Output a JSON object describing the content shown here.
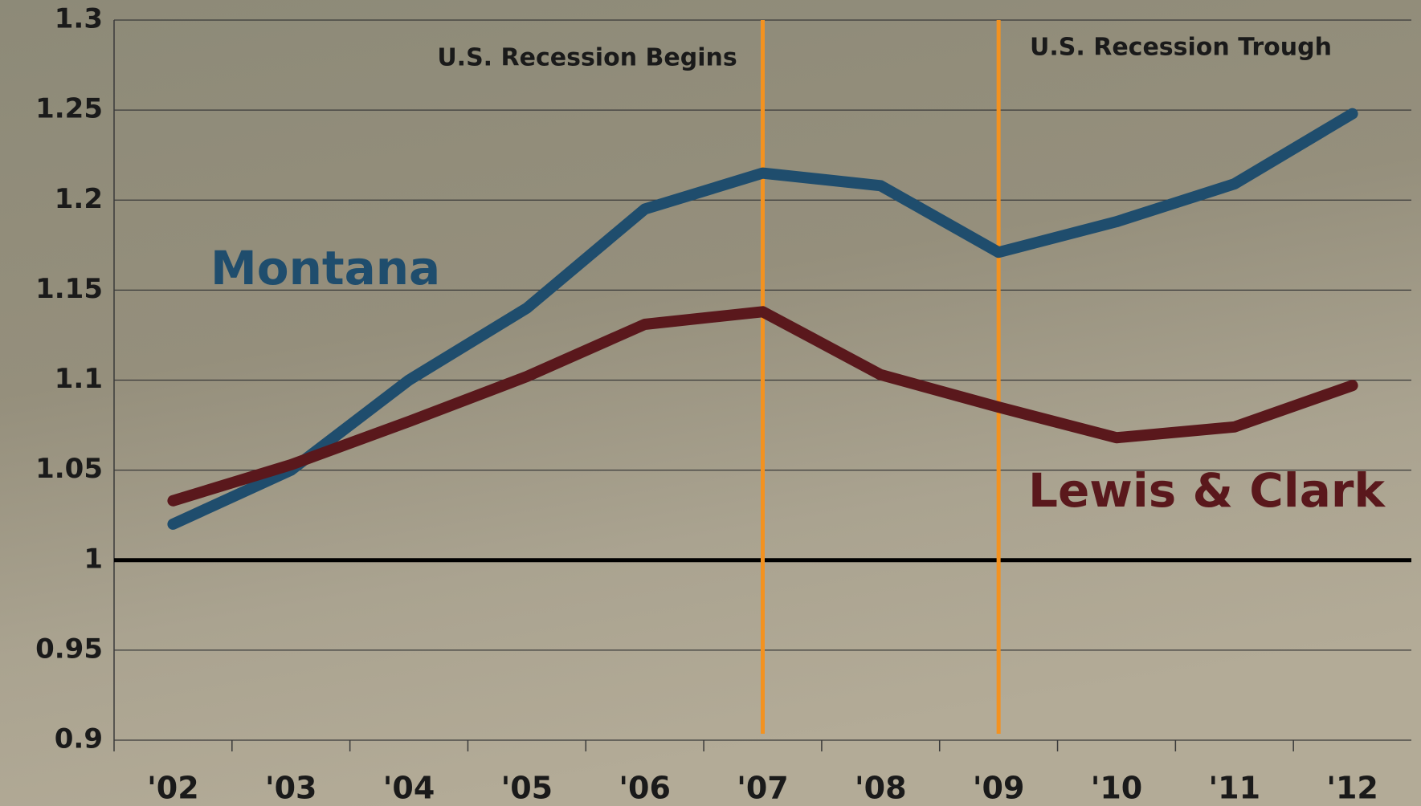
{
  "chart_data": {
    "type": "line",
    "categories": [
      "'02",
      "'03",
      "'04",
      "'05",
      "'06",
      "'07",
      "'08",
      "'09",
      "'10",
      "'11",
      "'12"
    ],
    "series": [
      {
        "name": "Montana",
        "color": "#1f4d6d",
        "values": [
          1.02,
          1.05,
          1.1,
          1.14,
          1.195,
          1.215,
          1.208,
          1.171,
          1.188,
          1.209,
          1.248
        ]
      },
      {
        "name": "Lewis & Clark",
        "color": "#5a181c",
        "values": [
          1.033,
          1.053,
          1.077,
          1.102,
          1.131,
          1.138,
          1.103,
          1.085,
          1.068,
          1.074,
          1.097
        ]
      }
    ],
    "ylim": [
      0.9,
      1.3
    ],
    "yticks": [
      0.9,
      0.95,
      1,
      1.05,
      1.1,
      1.15,
      1.2,
      1.25,
      1.3
    ],
    "grid": true,
    "reference_line": 1,
    "annotations": [
      {
        "text": "U.S. Recession Begins",
        "x": "'07",
        "color": "#f39220"
      },
      {
        "text": "U.S. Recession Trough",
        "x": "'09",
        "color": "#f39220"
      }
    ]
  }
}
